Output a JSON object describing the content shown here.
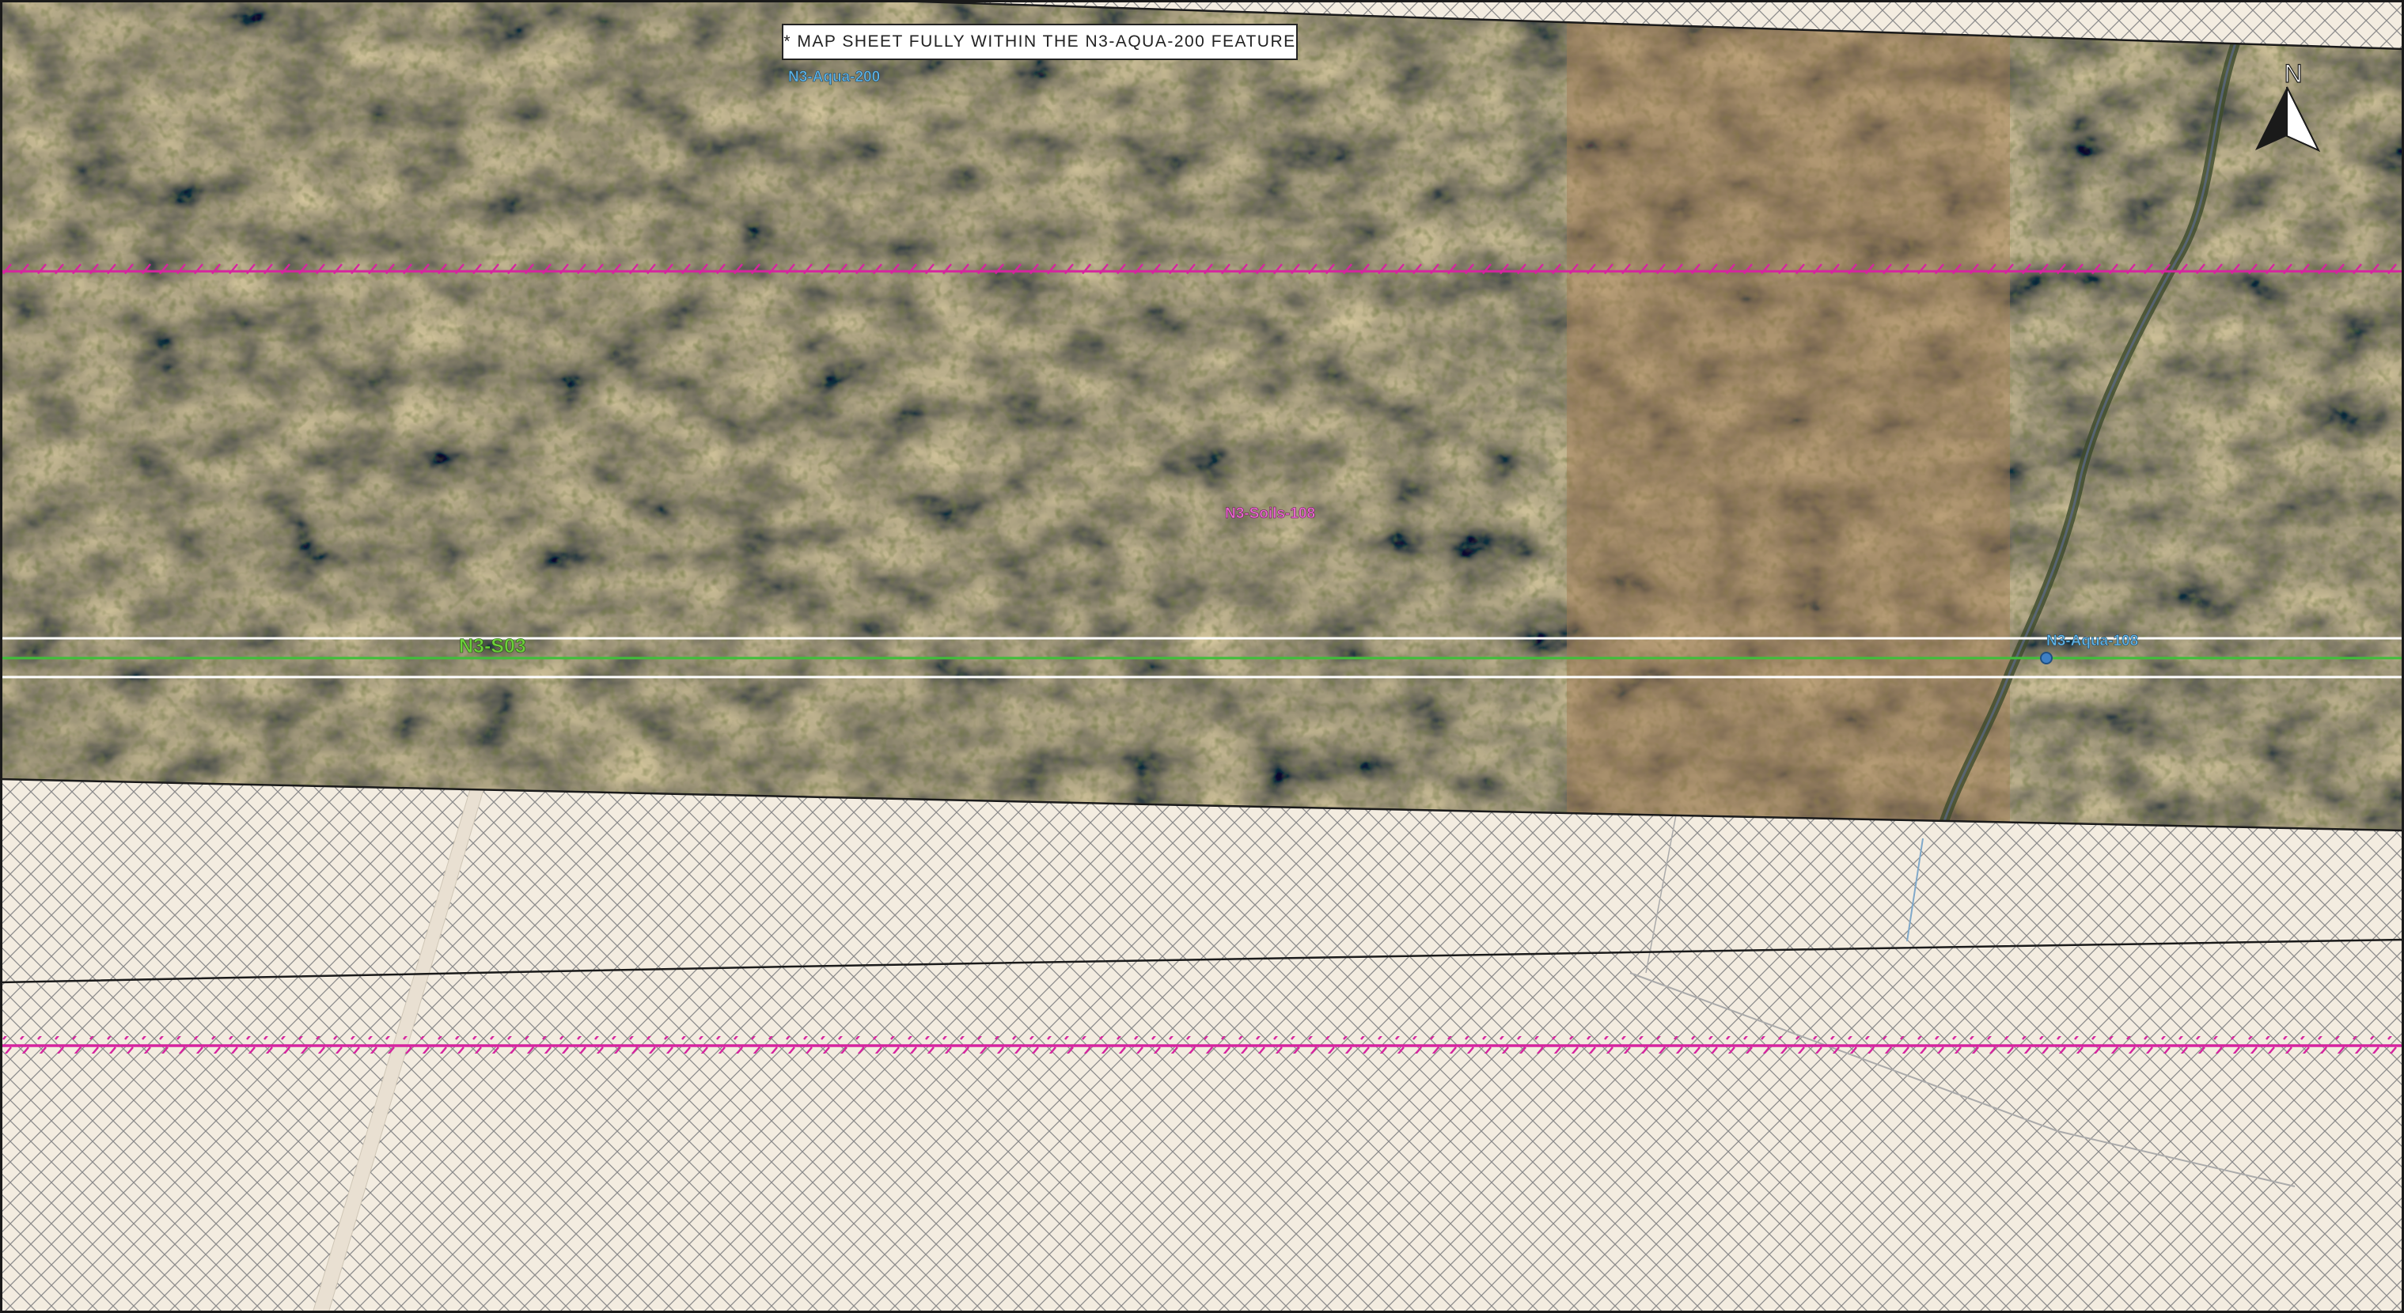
{
  "notice_text": "* MAP SHEET FULLY WITHIN THE N3-AQUA-200 FEATURE",
  "labels": {
    "aqua_200": "N3-Aqua-200",
    "soils_108": "N3-Soils-108",
    "s03": "N3-S03",
    "aqua_108": "N3-Aqua-108"
  },
  "north_arrow": {
    "letter": "N",
    "icon": "north-arrow-icon"
  },
  "colors": {
    "aqua_label": "#5fb4e6",
    "soils_label": "#e04fc4",
    "s03_label": "#6ccf3a",
    "soils_line": "#d6249f",
    "centerline": "#3fbf3a",
    "row_edges": "#ffffff",
    "hatch_background": "#f3ece0",
    "hatch_lines": "#9a9a9a"
  }
}
